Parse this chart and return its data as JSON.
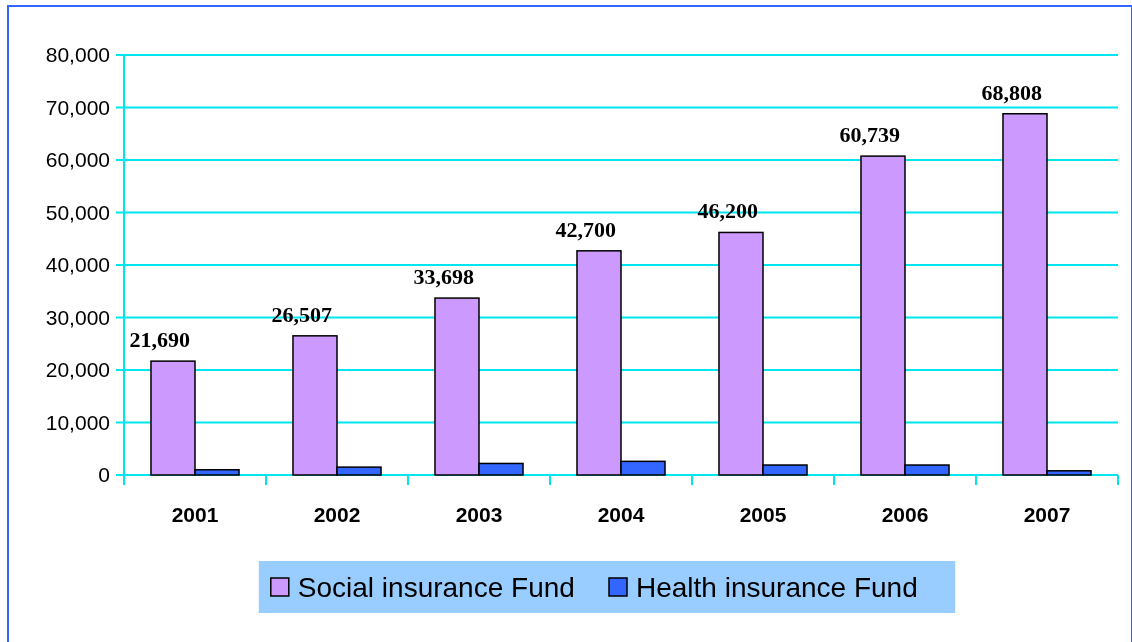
{
  "chart_data": {
    "type": "bar",
    "categories": [
      "2001",
      "2002",
      "2003",
      "2004",
      "2005",
      "2006",
      "2007"
    ],
    "series": [
      {
        "name": "Social insurance Fund",
        "color": "#cc99ff",
        "values": [
          21690,
          26507,
          33698,
          42700,
          46200,
          60739,
          68808
        ],
        "value_labels": [
          "21,690",
          "26,507",
          "33,698",
          "42,700",
          "46,200",
          "60,739",
          "68,808"
        ]
      },
      {
        "name": "Health insurance Fund",
        "color": "#3366ff",
        "values": [
          1000,
          1500,
          2200,
          2600,
          1900,
          1900,
          800
        ]
      }
    ],
    "ylim": [
      0,
      80000
    ],
    "yticks": [
      {
        "value": 0,
        "label": "0"
      },
      {
        "value": 10000,
        "label": "10,000"
      },
      {
        "value": 20000,
        "label": "20,000"
      },
      {
        "value": 30000,
        "label": "30,000"
      },
      {
        "value": 40000,
        "label": "40,000"
      },
      {
        "value": 50000,
        "label": "50,000"
      },
      {
        "value": 60000,
        "label": "60,000"
      },
      {
        "value": 70000,
        "label": "70,000"
      },
      {
        "value": 80000,
        "label": "80,000"
      }
    ],
    "grid": "y",
    "legend": "bottom"
  }
}
